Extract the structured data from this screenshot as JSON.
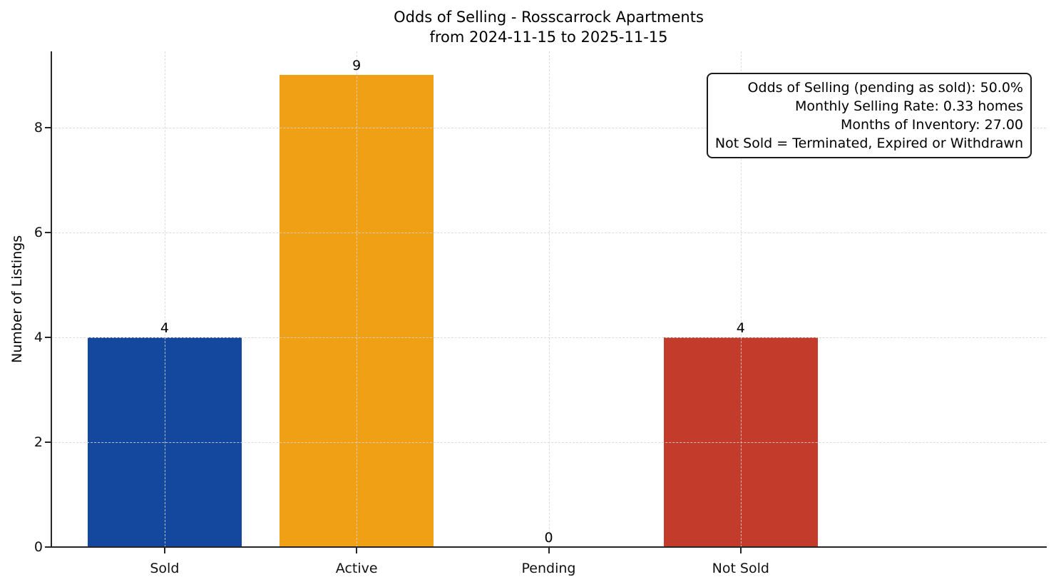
{
  "title": {
    "line1": "Odds of Selling - Rosscarrock Apartments",
    "line2": "from 2024-11-15 to 2025-11-15"
  },
  "chart_data": {
    "type": "bar",
    "title": "Odds of Selling - Rosscarrock Apartments\nfrom 2024-11-15 to 2025-11-15",
    "title_lines": [
      "Odds of Selling - Rosscarrock Apartments",
      "from 2024-11-15 to 2025-11-15"
    ],
    "xlabel": "",
    "ylabel": "Number of Listings",
    "categories": [
      "Sold",
      "Active",
      "Pending",
      "Not Sold"
    ],
    "values": [
      4,
      9,
      0,
      4
    ],
    "value_labels": [
      "4",
      "9",
      "0",
      "4"
    ],
    "bar_colors": [
      "#14479e",
      "#f0a014",
      null,
      "#c23b2b"
    ],
    "ylim": [
      0,
      9.45
    ],
    "yticks": [
      0,
      2,
      4,
      6,
      8
    ],
    "ytick_labels": [
      "0",
      "2",
      "4",
      "6",
      "8"
    ],
    "grid": true,
    "grid_style": "dashed",
    "axis_color": "#262626",
    "grid_color": "#d6d6d6",
    "annotation": {
      "position": "upper-right",
      "lines": [
        "Odds of Selling (pending as sold): 50.0%",
        "Monthly Selling Rate: 0.33 homes",
        "Months of Inventory: 27.00",
        "Not Sold = Terminated, Expired or Withdrawn"
      ]
    }
  }
}
